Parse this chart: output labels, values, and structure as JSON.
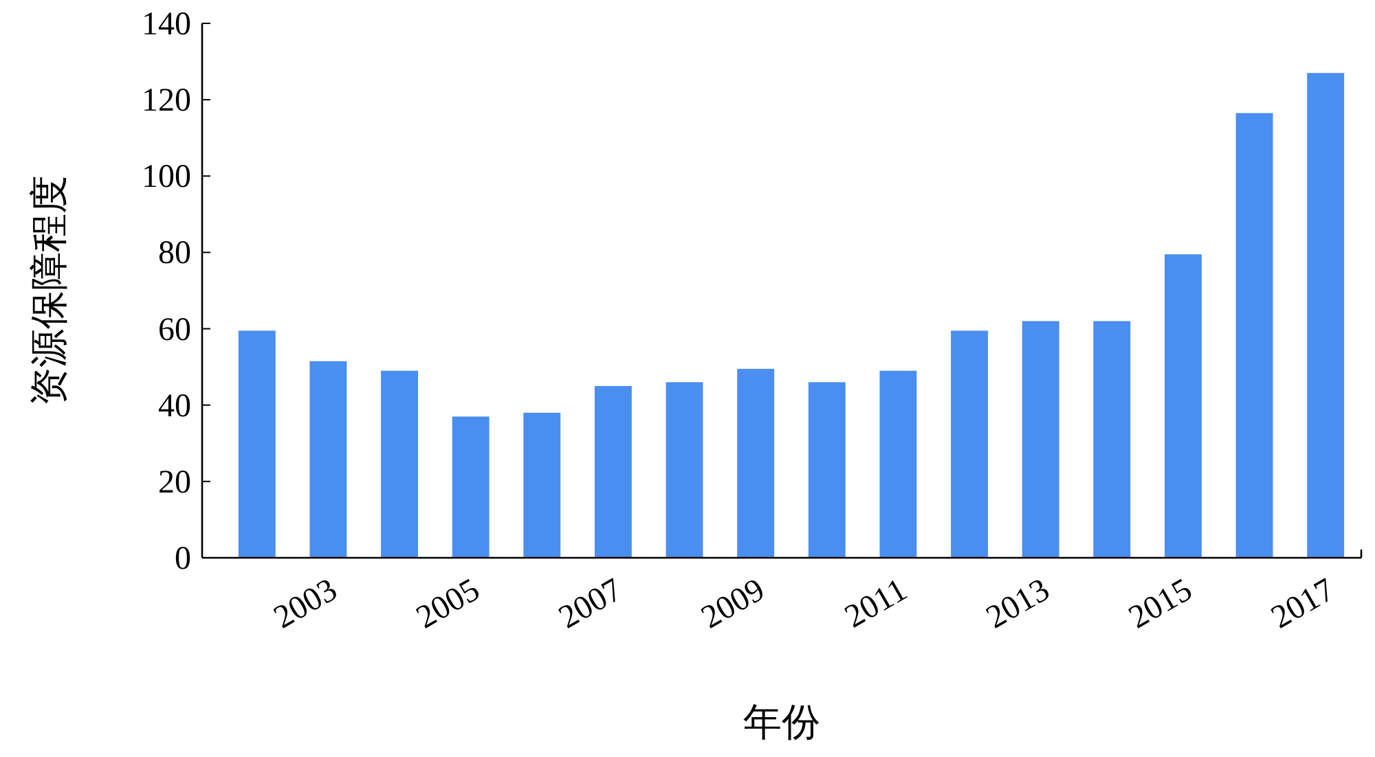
{
  "chart_data": {
    "type": "bar",
    "xlabel": "年份",
    "ylabel": "资源保障程度",
    "categories": [
      null,
      "2003",
      null,
      "2005",
      null,
      "2007",
      null,
      "2009",
      null,
      "2011",
      null,
      "2013",
      null,
      "2015",
      null,
      "2017"
    ],
    "values": [
      59.5,
      51.5,
      49,
      37,
      38,
      45,
      46,
      49.5,
      46,
      49,
      59.5,
      62,
      62,
      79.5,
      116.5,
      127
    ],
    "color": "#4a8ef0",
    "ylim": [
      0,
      140
    ],
    "yticks": [
      0,
      20,
      40,
      60,
      80,
      100,
      120,
      140
    ],
    "grid": false
  }
}
